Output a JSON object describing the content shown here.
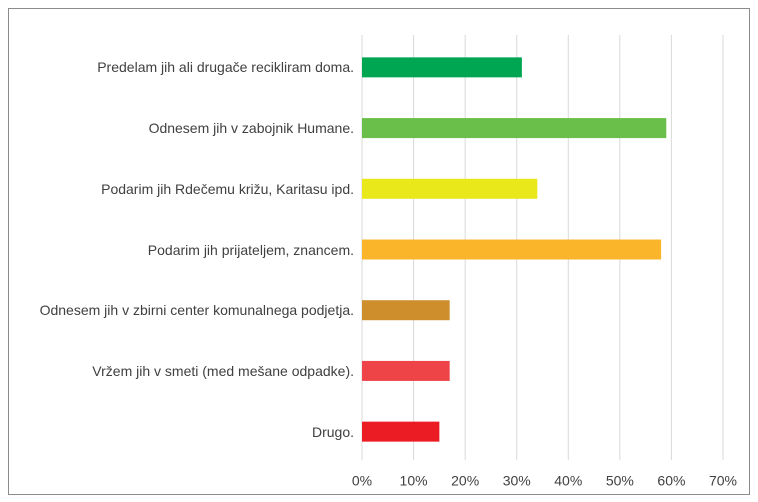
{
  "chart_data": {
    "type": "bar",
    "orientation": "horizontal",
    "categories": [
      "Predelam jih ali drugače recikliram doma.",
      "Odnesem jih v zabojnik Humane.",
      "Podarim jih Rdečemu križu, Karitasu ipd.",
      "Podarim jih prijateljem, znancem.",
      "Odnesem jih v zbirni center komunalnega podjetja.",
      "Vržem jih v smeti (med mešane odpadke).",
      "Drugo."
    ],
    "values": [
      31,
      59,
      34,
      58,
      17,
      17,
      15
    ],
    "colors": [
      "#00a651",
      "#6abf4b",
      "#e9e81a",
      "#fbb52b",
      "#cf8e2c",
      "#ee4347",
      "#ec1c24"
    ],
    "xlim": [
      0,
      70
    ],
    "xticks": [
      {
        "value": 0,
        "label": "0%"
      },
      {
        "value": 10,
        "label": "10%"
      },
      {
        "value": 20,
        "label": "20%"
      },
      {
        "value": 30,
        "label": "30%"
      },
      {
        "value": 40,
        "label": "40%"
      },
      {
        "value": 50,
        "label": "50%"
      },
      {
        "value": 60,
        "label": "60%"
      },
      {
        "value": 70,
        "label": "70%"
      }
    ],
    "grid": true
  }
}
